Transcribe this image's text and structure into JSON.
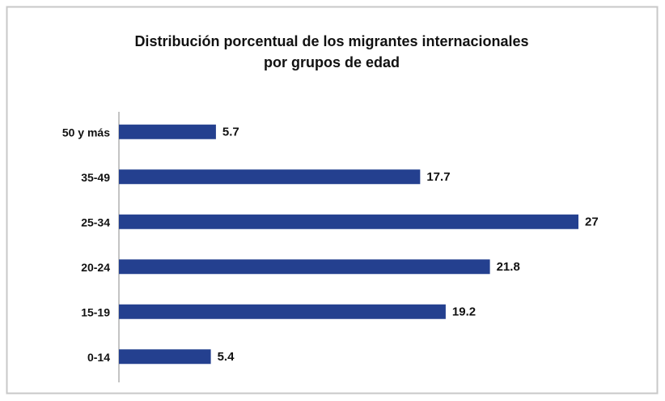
{
  "chart_data": {
    "type": "bar",
    "orientation": "horizontal",
    "title": [
      "Distribución porcentual de los migrantes internacionales",
      "por grupos de edad"
    ],
    "categories": [
      "50 y más",
      "35-49",
      "25-34",
      "20-24",
      "15-19",
      "0-14"
    ],
    "values": [
      5.7,
      17.7,
      27,
      21.8,
      19.2,
      5.4
    ],
    "color": "#24408f"
  }
}
